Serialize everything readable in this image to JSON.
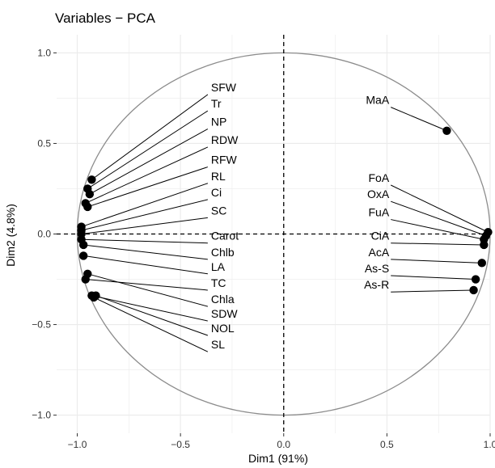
{
  "chart_data": {
    "type": "scatter",
    "title": "Variables − PCA",
    "xlabel": "Dim1 (91%)",
    "ylabel": "Dim2 (4.8%)",
    "xlim": [
      -1.1,
      1.0
    ],
    "ylim": [
      -1.1,
      1.1
    ],
    "x_ticks": [
      -1.0,
      -0.5,
      0.0,
      0.5,
      1.0
    ],
    "x_tick_labels": [
      "−1.0",
      "−0.5",
      "0.0",
      "0.5",
      "1.0"
    ],
    "y_ticks": [
      -1.0,
      -0.5,
      0.0,
      0.5,
      1.0
    ],
    "y_tick_labels": [
      "−1.0",
      "−0.5",
      "0.0",
      "0.5",
      "1.0"
    ],
    "grid": true,
    "circle_radius": 1.0,
    "colors": {
      "point": "#000000",
      "circle": "#8c8c8c",
      "grid": "#ebebeb",
      "label_line": "#000000"
    },
    "points": [
      {
        "name": "SFW",
        "x": -0.93,
        "y": 0.3,
        "label_x": -0.36,
        "label_y": 0.77
      },
      {
        "name": "Tr",
        "x": -0.95,
        "y": 0.25,
        "label_x": -0.36,
        "label_y": 0.68
      },
      {
        "name": "NP",
        "x": -0.94,
        "y": 0.22,
        "label_x": -0.36,
        "label_y": 0.58
      },
      {
        "name": "RDW",
        "x": -0.96,
        "y": 0.17,
        "label_x": -0.36,
        "label_y": 0.48
      },
      {
        "name": "RFW",
        "x": -0.95,
        "y": 0.15,
        "label_x": -0.36,
        "label_y": 0.37
      },
      {
        "name": "RL",
        "x": -0.98,
        "y": 0.04,
        "label_x": -0.36,
        "label_y": 0.28
      },
      {
        "name": "Ci",
        "x": -0.98,
        "y": 0.02,
        "label_x": -0.36,
        "label_y": 0.19
      },
      {
        "name": "SC",
        "x": -0.98,
        "y": 0.0,
        "label_x": -0.36,
        "label_y": 0.09
      },
      {
        "name": "Carot",
        "x": -0.98,
        "y": -0.03,
        "label_x": -0.36,
        "label_y": -0.05
      },
      {
        "name": "Chlb",
        "x": -0.97,
        "y": -0.06,
        "label_x": -0.36,
        "label_y": -0.14
      },
      {
        "name": "LA",
        "x": -0.97,
        "y": -0.12,
        "label_x": -0.36,
        "label_y": -0.22
      },
      {
        "name": "TC",
        "x": -0.96,
        "y": -0.25,
        "label_x": -0.36,
        "label_y": -0.31
      },
      {
        "name": "Chla",
        "x": -0.95,
        "y": -0.22,
        "label_x": -0.36,
        "label_y": -0.4
      },
      {
        "name": "SDW",
        "x": -0.93,
        "y": -0.34,
        "label_x": -0.36,
        "label_y": -0.48
      },
      {
        "name": "NOL",
        "x": -0.91,
        "y": -0.34,
        "label_x": -0.36,
        "label_y": -0.56
      },
      {
        "name": "SL",
        "x": -0.92,
        "y": -0.35,
        "label_x": -0.36,
        "label_y": -0.65
      },
      {
        "name": "MaA",
        "x": 0.79,
        "y": 0.57,
        "label_x": 0.37,
        "label_y": 0.7
      },
      {
        "name": "FoA",
        "x": 0.99,
        "y": 0.01,
        "label_x": 0.37,
        "label_y": 0.27
      },
      {
        "name": "OxA",
        "x": 0.98,
        "y": -0.01,
        "label_x": 0.37,
        "label_y": 0.18
      },
      {
        "name": "FuA",
        "x": 0.97,
        "y": -0.03,
        "label_x": 0.37,
        "label_y": 0.08
      },
      {
        "name": "CiA",
        "x": 0.97,
        "y": -0.06,
        "label_x": 0.37,
        "label_y": -0.05
      },
      {
        "name": "AcA",
        "x": 0.96,
        "y": -0.16,
        "label_x": 0.37,
        "label_y": -0.14
      },
      {
        "name": "As-S",
        "x": 0.93,
        "y": -0.25,
        "label_x": 0.37,
        "label_y": -0.23
      },
      {
        "name": "As-R",
        "x": 0.92,
        "y": -0.31,
        "label_x": 0.37,
        "label_y": -0.32
      }
    ]
  }
}
